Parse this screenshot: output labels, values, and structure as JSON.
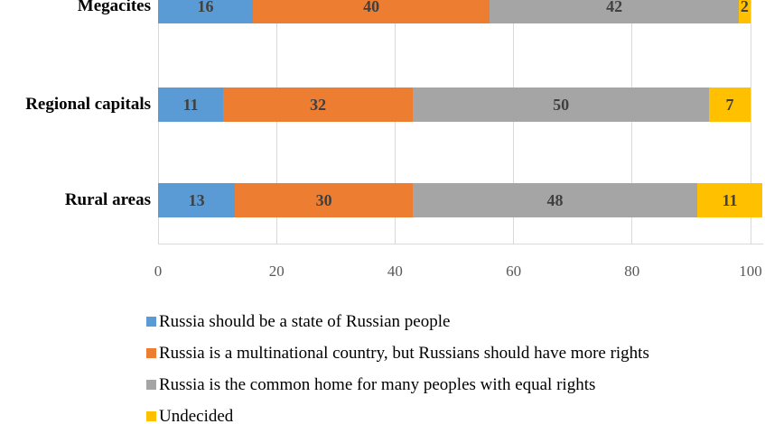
{
  "chart_data": {
    "type": "bar",
    "orientation": "horizontal-stacked",
    "title": "",
    "xlabel": "",
    "ylabel": "",
    "categories": [
      "Megacites",
      "Regional capitals",
      "Rural areas"
    ],
    "series": [
      {
        "name": "Russia should be a state of Russian people",
        "color": "#5b9bd5",
        "values": [
          16,
          11,
          13
        ]
      },
      {
        "name": "Russia is a multinational country, but Russians should have more rights",
        "color": "#ed7d31",
        "values": [
          40,
          32,
          30
        ]
      },
      {
        "name": "Russia is the common home for many peoples with equal rights",
        "color": "#a5a5a5",
        "values": [
          42,
          50,
          48
        ]
      },
      {
        "name": "Undecided",
        "color": "#ffc000",
        "values": [
          2,
          7,
          11
        ]
      }
    ],
    "x_ticks": [
      0,
      20,
      40,
      60,
      80,
      100
    ],
    "xlim": [
      0,
      102
    ],
    "grid": true,
    "legend_position": "bottom-left",
    "data_labels": true
  },
  "colors": {
    "background": "#ffffff",
    "gridline": "#d9d9d9",
    "axis_line": "#d9d9d9",
    "value_label": "#404040",
    "tick_label": "#595959",
    "category_label": "#000000",
    "legend_text": "#000000"
  }
}
